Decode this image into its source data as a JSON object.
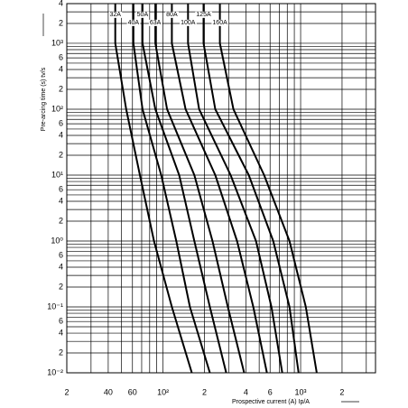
{
  "chart_data": {
    "type": "line",
    "xlabel": "Prospective current (A) Ip/A",
    "ylabel": "Pre-arcing time (s)  tv/s",
    "xscale": "log",
    "yscale": "log",
    "grid": true,
    "color": "#000000",
    "xlim": [
      20,
      3500
    ],
    "ylim": [
      0.01,
      4000
    ],
    "xticks": [
      {
        "value": 20,
        "label": "2"
      },
      40,
      60,
      {
        "value": 100,
        "label": "10²"
      },
      {
        "value": 200,
        "label": "2"
      },
      {
        "value": 400,
        "label": "4"
      },
      {
        "value": 600,
        "label": "6"
      },
      {
        "value": 1000,
        "label": "10³"
      },
      {
        "value": 2000,
        "label": "2"
      }
    ],
    "minor_xticks": [
      30,
      50,
      70,
      80,
      90,
      300,
      500,
      700,
      800,
      900,
      3000
    ],
    "yticks": [
      {
        "value": 0.01,
        "label": "10⁻²"
      },
      {
        "value": 0.02,
        "label": "2"
      },
      {
        "value": 0.04,
        "label": "4"
      },
      {
        "value": 0.06,
        "label": "6"
      },
      {
        "value": 0.1,
        "label": "10⁻¹"
      },
      {
        "value": 0.2,
        "label": "2"
      },
      {
        "value": 0.4,
        "label": "4"
      },
      {
        "value": 0.6,
        "label": "6"
      },
      {
        "value": 1,
        "label": "10⁰"
      },
      2,
      4,
      6,
      {
        "value": 10,
        "label": "10¹"
      },
      {
        "value": 20,
        "label": "2"
      },
      {
        "value": 40,
        "label": "4"
      },
      {
        "value": 60,
        "label": "6"
      },
      {
        "value": 100,
        "label": "10²"
      },
      {
        "value": 200,
        "label": "2"
      },
      {
        "value": 400,
        "label": "4"
      },
      {
        "value": 600,
        "label": "6"
      },
      {
        "value": 1000,
        "label": "10³"
      },
      {
        "value": 2000,
        "label": "2"
      },
      {
        "value": 4000,
        "label": "4"
      }
    ],
    "minor_yticks": [
      0.03,
      0.05,
      0.07,
      0.08,
      0.09,
      0.3,
      0.5,
      0.7,
      0.8,
      0.9,
      3,
      5,
      7,
      8,
      9,
      30,
      50,
      70,
      80,
      90,
      300,
      500,
      700,
      800,
      900,
      3000
    ],
    "series": [
      {
        "name": "32A",
        "x": [
          45,
          45,
          54,
          68,
          86,
          116,
          162
        ],
        "y": [
          4000,
          1000,
          100,
          10,
          1,
          0.1,
          0.01
        ]
      },
      {
        "name": "40A",
        "x": [
          61,
          61,
          71,
          97,
          125,
          157,
          219
        ],
        "y": [
          4000,
          1000,
          100,
          10,
          1,
          0.1,
          0.01
        ]
      },
      {
        "name": "50A",
        "x": [
          71,
          71,
          88,
          131,
          169,
          219,
          288
        ],
        "y": [
          4000,
          1000,
          100,
          10,
          1,
          0.1,
          0.01
        ]
      },
      {
        "name": "63A",
        "x": [
          88,
          88,
          107,
          169,
          229,
          296,
          389
        ],
        "y": [
          4000,
          1000,
          100,
          10,
          1,
          0.1,
          0.01
        ]
      },
      {
        "name": "80A",
        "x": [
          116,
          116,
          146,
          240,
          345,
          453,
          569
        ],
        "y": [
          4000,
          1000,
          100,
          10,
          1,
          0.1,
          0.01
        ]
      },
      {
        "name": "100A",
        "x": [
          152,
          152,
          183,
          310,
          474,
          614,
          736
        ],
        "y": [
          4000,
          1000,
          100,
          10,
          1,
          0.1,
          0.01
        ]
      },
      {
        "name": "125A",
        "x": [
          197,
          197,
          240,
          420,
          632,
          830,
          966
        ],
        "y": [
          4000,
          1000,
          100,
          10,
          1,
          0.1,
          0.01
        ]
      },
      {
        "name": "160A",
        "x": [
          259,
          259,
          325,
          543,
          830,
          1091,
          1309
        ],
        "y": [
          4000,
          1000,
          100,
          10,
          1,
          0.1,
          0.01
        ]
      }
    ]
  }
}
